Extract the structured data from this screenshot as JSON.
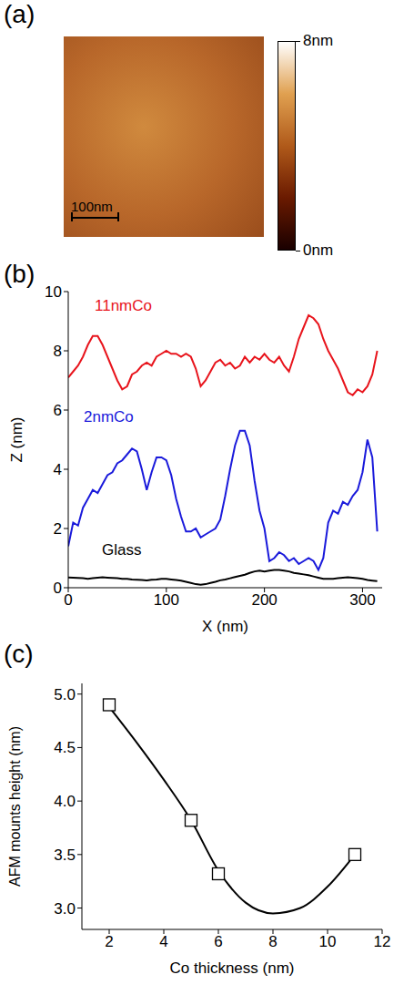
{
  "chart_data": [
    {
      "type": "image",
      "panel": "(a)",
      "colorbar_range": [
        0,
        8
      ],
      "colorbar_ticks": [
        {
          "value": 8,
          "label": "8nm"
        },
        {
          "value": 0,
          "label": "0nm"
        }
      ],
      "scale_bar": {
        "value": 100,
        "label": "100nm"
      }
    },
    {
      "type": "line",
      "panel": "(b)",
      "x_label": "X (nm)",
      "y_label": "Z (nm)",
      "x": [
        0,
        5,
        10,
        15,
        20,
        25,
        30,
        35,
        40,
        45,
        50,
        55,
        60,
        65,
        70,
        75,
        80,
        85,
        90,
        95,
        100,
        105,
        110,
        115,
        120,
        125,
        130,
        135,
        140,
        145,
        150,
        155,
        160,
        165,
        170,
        175,
        180,
        185,
        190,
        195,
        200,
        205,
        210,
        215,
        220,
        225,
        230,
        235,
        240,
        245,
        250,
        255,
        260,
        265,
        270,
        275,
        280,
        285,
        290,
        295,
        300,
        305,
        310,
        315
      ],
      "series": [
        {
          "name": "11nmCo",
          "color": "#e8141c",
          "values": [
            7.1,
            7.3,
            7.5,
            7.8,
            8.2,
            8.5,
            8.5,
            8.2,
            7.8,
            7.4,
            7.0,
            6.7,
            6.8,
            7.2,
            7.3,
            7.5,
            7.6,
            7.5,
            7.8,
            7.9,
            8.0,
            7.9,
            7.9,
            7.8,
            7.9,
            7.8,
            7.4,
            6.8,
            7.0,
            7.3,
            7.6,
            7.7,
            7.5,
            7.6,
            7.4,
            7.5,
            7.8,
            7.6,
            7.8,
            7.7,
            7.9,
            7.7,
            7.6,
            7.8,
            7.5,
            7.3,
            7.8,
            8.4,
            8.8,
            9.2,
            9.1,
            8.9,
            8.4,
            8.0,
            7.7,
            7.4,
            7.0,
            6.6,
            6.5,
            6.7,
            6.6,
            6.8,
            7.2,
            8.0
          ]
        },
        {
          "name": "2nmCo",
          "color": "#1a1adb",
          "values": [
            1.4,
            2.2,
            2.1,
            2.7,
            3.0,
            3.3,
            3.2,
            3.5,
            3.8,
            3.9,
            4.2,
            4.3,
            4.5,
            4.7,
            4.6,
            4.0,
            3.3,
            3.9,
            4.4,
            4.4,
            4.3,
            3.8,
            3.0,
            2.4,
            1.9,
            1.9,
            2.0,
            1.7,
            1.8,
            1.9,
            2.0,
            2.3,
            3.1,
            4.0,
            4.8,
            5.3,
            5.3,
            4.8,
            3.6,
            2.6,
            2.0,
            0.9,
            1.0,
            1.2,
            1.1,
            0.9,
            1.0,
            0.8,
            0.9,
            1.0,
            0.9,
            0.6,
            1.0,
            2.2,
            2.6,
            2.5,
            2.9,
            2.8,
            3.1,
            3.3,
            3.9,
            5.0,
            4.4,
            1.9
          ]
        },
        {
          "name": "Glass",
          "color": "#000000",
          "values": [
            0.35,
            0.34,
            0.33,
            0.32,
            0.3,
            0.32,
            0.34,
            0.35,
            0.34,
            0.33,
            0.32,
            0.3,
            0.3,
            0.28,
            0.27,
            0.26,
            0.25,
            0.27,
            0.28,
            0.3,
            0.3,
            0.28,
            0.26,
            0.24,
            0.2,
            0.16,
            0.12,
            0.1,
            0.12,
            0.16,
            0.2,
            0.25,
            0.28,
            0.32,
            0.36,
            0.4,
            0.44,
            0.5,
            0.55,
            0.58,
            0.55,
            0.58,
            0.6,
            0.6,
            0.58,
            0.55,
            0.5,
            0.48,
            0.45,
            0.42,
            0.38,
            0.34,
            0.3,
            0.3,
            0.3,
            0.32,
            0.34,
            0.35,
            0.34,
            0.32,
            0.3,
            0.26,
            0.24,
            0.22
          ]
        }
      ],
      "xlim": [
        0,
        320
      ],
      "xticks": [
        0,
        100,
        200,
        300
      ],
      "ylim": [
        0,
        10
      ],
      "yticks": [
        0,
        2,
        4,
        6,
        8,
        10
      ]
    },
    {
      "type": "scatter",
      "panel": "(c)",
      "x_label": "Co thickness (nm)",
      "y_label": "AFM mounts height (nm)",
      "series": [
        {
          "type": "scatter",
          "marker": "square",
          "color": "#000000",
          "x": [
            2,
            5,
            6,
            11
          ],
          "values": [
            4.9,
            3.82,
            3.32,
            3.5
          ]
        },
        {
          "type": "line",
          "color": "#000000",
          "x": [
            2,
            3,
            4,
            5,
            6,
            7,
            8,
            9,
            10,
            11
          ],
          "values": [
            4.88,
            4.55,
            4.2,
            3.82,
            3.35,
            3.05,
            2.95,
            3.0,
            3.2,
            3.5
          ]
        }
      ],
      "xlim": [
        1,
        12
      ],
      "xticks": [
        2,
        4,
        6,
        8,
        10,
        12
      ],
      "ylim": [
        2.8,
        5.1
      ],
      "yticks": [
        {
          "value": 3,
          "label": "3.0"
        },
        3.5,
        {
          "value": 4,
          "label": "4.0"
        },
        4.5,
        {
          "value": 5,
          "label": "5.0"
        }
      ]
    }
  ]
}
